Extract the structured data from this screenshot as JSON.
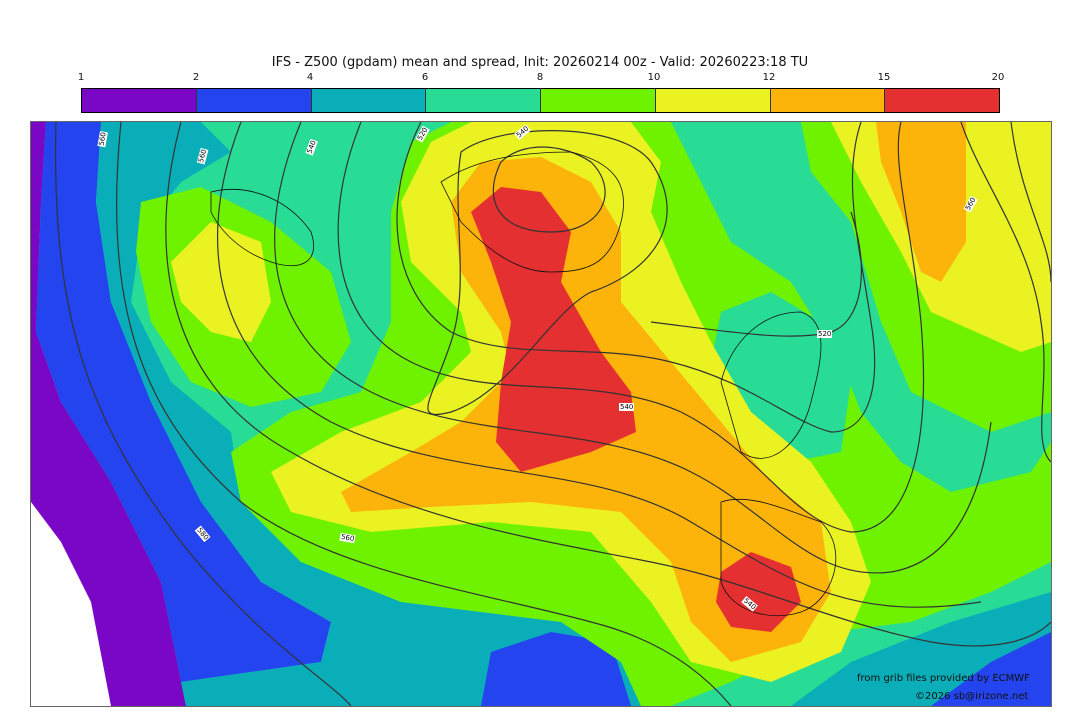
{
  "title": "IFS - Z500 (gpdam) mean and spread, Init: 20260214 00z - Valid: 20260223:18 TU",
  "colorbar": {
    "ticks": [
      "1",
      "2",
      "4",
      "6",
      "8",
      "10",
      "12",
      "15",
      "20"
    ],
    "colors": [
      "#7a06c6",
      "#2444f0",
      "#0aaeb8",
      "#28dc96",
      "#6ef200",
      "#eaf222",
      "#fdb40a",
      "#e43030"
    ]
  },
  "contour_labels": [
    "560",
    "560",
    "540",
    "520",
    "540",
    "520",
    "540",
    "560",
    "540",
    "560",
    "580"
  ],
  "credits": {
    "source": "from grib files provided by ECMWF",
    "copyright": "©2026 sb@irizone.net"
  }
}
